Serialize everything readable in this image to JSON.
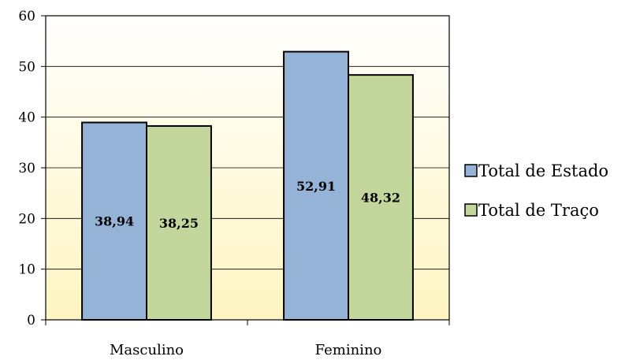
{
  "chart_data": {
    "type": "bar",
    "categories": [
      "Masculino",
      "Feminino"
    ],
    "series": [
      {
        "name": "Total de Estado",
        "values": [
          38.94,
          52.91
        ],
        "labels": [
          "38,94",
          "52,91"
        ],
        "color": "#95B3D7"
      },
      {
        "name": "Total de Traço",
        "values": [
          38.25,
          48.32
        ],
        "labels": [
          "38,25",
          "48,32"
        ],
        "color": "#C3D69B"
      }
    ],
    "ylim": [
      0,
      60
    ],
    "yticks": [
      "0",
      "10",
      "20",
      "30",
      "40",
      "50",
      "60"
    ],
    "grid": true,
    "legend": "right",
    "plot_background": [
      "#FFFFFF",
      "#FFF5C2"
    ]
  }
}
